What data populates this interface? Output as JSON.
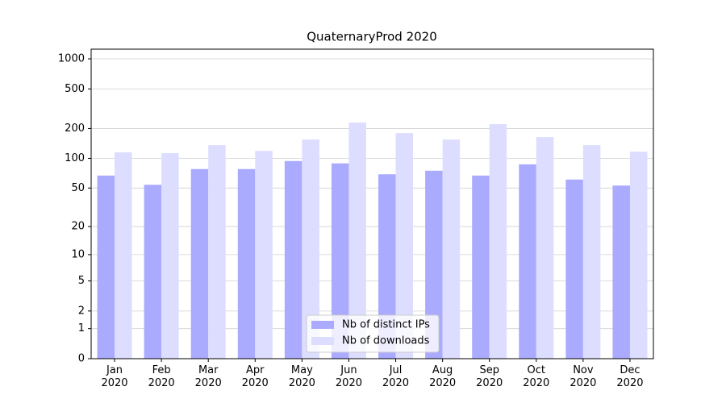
{
  "chart_data": {
    "type": "bar",
    "title": "QuaternaryProd 2020",
    "categories": [
      "Jan\n2020",
      "Feb\n2020",
      "Mar\n2020",
      "Apr\n2020",
      "May\n2020",
      "Jun\n2020",
      "Jul\n2020",
      "Aug\n2020",
      "Sep\n2020",
      "Oct\n2020",
      "Nov\n2020",
      "Dec\n2020"
    ],
    "series": [
      {
        "name": "Nb of distinct IPs",
        "color": "#aaaaff",
        "values": [
          67,
          54,
          78,
          78,
          94,
          89,
          69,
          75,
          67,
          87,
          61,
          53
        ]
      },
      {
        "name": "Nb of downloads",
        "color": "#ddddff",
        "values": [
          115,
          113,
          136,
          119,
          155,
          230,
          180,
          155,
          221,
          164,
          136,
          117
        ]
      }
    ],
    "yscale": "log1p",
    "ylim": [
      0,
      1250
    ],
    "yticks": [
      0,
      1,
      2,
      5,
      10,
      20,
      50,
      100,
      200,
      500,
      1000
    ],
    "grid": true,
    "legend": "lower center"
  }
}
